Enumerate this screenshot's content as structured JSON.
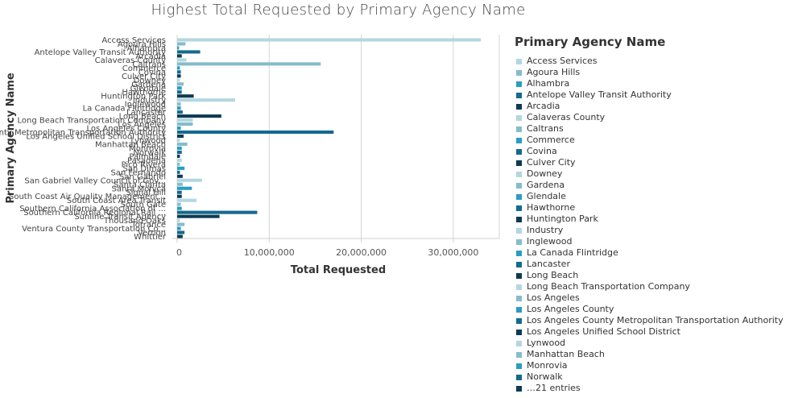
{
  "chart_data": {
    "type": "bar",
    "orientation": "horizontal",
    "title": "Highest Total Requested by Primary Agency Name",
    "xlabel": "Total Requested",
    "ylabel": "Primary Agency Name",
    "xlim": [
      0,
      35000000
    ],
    "xticks": [
      0,
      10000000,
      20000000,
      30000000
    ],
    "xtick_labels": [
      "0",
      "10,000,000",
      "20,000,000",
      "30,000,000"
    ],
    "grid": "vertical",
    "legend_title": "Primary Agency Name",
    "legend_placement": "right",
    "legend_overflow": "…21 entries",
    "palette": [
      "#b3d7e0",
      "#86bccb",
      "#2a9dc4",
      "#146a90",
      "#0e3a52"
    ],
    "categories": [
      "Access Services",
      "Agoura Hills",
      "Alhambra",
      "Antelope Valley Transit Authority",
      "Arcadia",
      "Calaveras County",
      "Caltrans",
      "Commerce",
      "Covina",
      "Culver City",
      "Downey",
      "Gardena",
      "Glendale",
      "Hawthorne",
      "Huntington Park",
      "Industry",
      "Inglewood",
      "La Canada Flintridge",
      "Lancaster",
      "Long Beach",
      "Long Beach Transportation Company",
      "Los Angeles",
      "Los Angeles County",
      "Los Angeles County Metropolitan Transportation Authority",
      "Los Angeles Unified School District",
      "Lynwood",
      "Manhattan Beach",
      "Monrovia",
      "Norwalk",
      "Palmdale",
      "Pasadena",
      "Pico Rivera",
      "San Dimas",
      "San Fernando",
      "San Gabriel",
      "San Gabriel Valley Council of Gov...",
      "Santa Clarita",
      "Santa Monica",
      "Signal Hill",
      "South Coast Air Quality Management...",
      "South Coast Area Transit",
      "South Gate",
      "Southern California Association of ...",
      "Southern California Regional Rail ...",
      "Sunline Transit Agency",
      "Thousand Oaks",
      "Torrance",
      "Ventura County Transportation Co...",
      "Vernon",
      "Whittier"
    ],
    "values": [
      33000000,
      900000,
      200000,
      2500000,
      500000,
      1000000,
      15600000,
      300000,
      400000,
      400000,
      300000,
      700000,
      500000,
      500000,
      1800000,
      6300000,
      400000,
      400000,
      600000,
      4800000,
      1700000,
      1700000,
      400000,
      17000000,
      700000,
      300000,
      1100000,
      500000,
      500000,
      300000,
      500000,
      300000,
      800000,
      300000,
      600000,
      2700000,
      600000,
      1600000,
      500000,
      500000,
      2100000,
      400000,
      500000,
      8700000,
      4600000,
      300000,
      800000,
      400000,
      800000,
      600000
    ]
  },
  "legend_visible": [
    "Access Services",
    "Agoura Hills",
    "Alhambra",
    "Antelope Valley Transit Authority",
    "Arcadia",
    "Calaveras County",
    "Caltrans",
    "Commerce",
    "Covina",
    "Culver City",
    "Downey",
    "Gardena",
    "Glendale",
    "Hawthorne",
    "Huntington Park",
    "Industry",
    "Inglewood",
    "La Canada Flintridge",
    "Lancaster",
    "Long Beach",
    "Long Beach Transportation Company",
    "Los Angeles",
    "Los Angeles County",
    "Los Angeles County Metropolitan Transportation Authority",
    "Los Angeles Unified School District",
    "Lynwood",
    "Manhattan Beach",
    "Monrovia",
    "Norwalk"
  ]
}
